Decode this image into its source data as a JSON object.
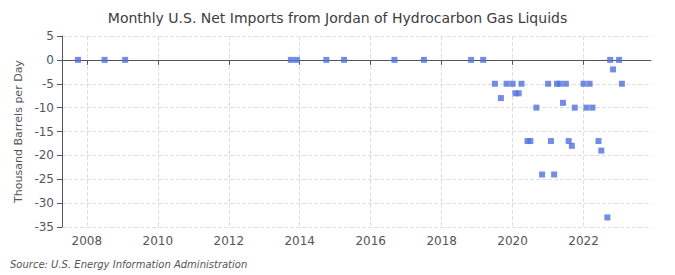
{
  "chart_data": {
    "type": "scatter",
    "title": "Monthly U.S. Net Imports from Jordan of Hydrocarbon Gas Liquids",
    "ylabel": "Thousand Barrels per Day",
    "annotation": "Source: U.S. Energy Information Administration",
    "x": [
      2007.75,
      2008.5,
      2009.08,
      2013.75,
      2013.92,
      2014.75,
      2015.25,
      2016.67,
      2017.5,
      2018.83,
      2019.17,
      2019.5,
      2019.67,
      2019.83,
      2020.0,
      2020.08,
      2020.17,
      2020.25,
      2020.42,
      2020.5,
      2020.67,
      2020.83,
      2021.0,
      2021.08,
      2021.17,
      2021.25,
      2021.33,
      2021.42,
      2021.5,
      2021.58,
      2021.67,
      2021.75,
      2022.0,
      2022.08,
      2022.17,
      2022.25,
      2022.42,
      2022.5,
      2022.67,
      2022.75,
      2022.83,
      2023.0,
      2023.08
    ],
    "values": [
      0,
      0,
      0,
      0,
      0,
      0,
      0,
      0,
      0,
      0,
      0,
      -5,
      -8,
      -5,
      -5,
      -7,
      -7,
      -5,
      -17,
      -17,
      -10,
      -24,
      -5,
      -17,
      -24,
      -5,
      -5,
      -9,
      -5,
      -17,
      -18,
      -10,
      -5,
      -10,
      -5,
      -10,
      -17,
      -19,
      -33,
      0,
      -2,
      0,
      -5
    ],
    "marker": "square",
    "xlim": [
      2007.3,
      2023.9
    ],
    "xticks": [
      2008,
      2010,
      2012,
      2014,
      2016,
      2018,
      2020,
      2022
    ],
    "ylim": [
      -35,
      5
    ],
    "yticks": [
      5,
      0,
      -5,
      -10,
      -15,
      -20,
      -25,
      -30,
      -35
    ],
    "grid": true
  }
}
